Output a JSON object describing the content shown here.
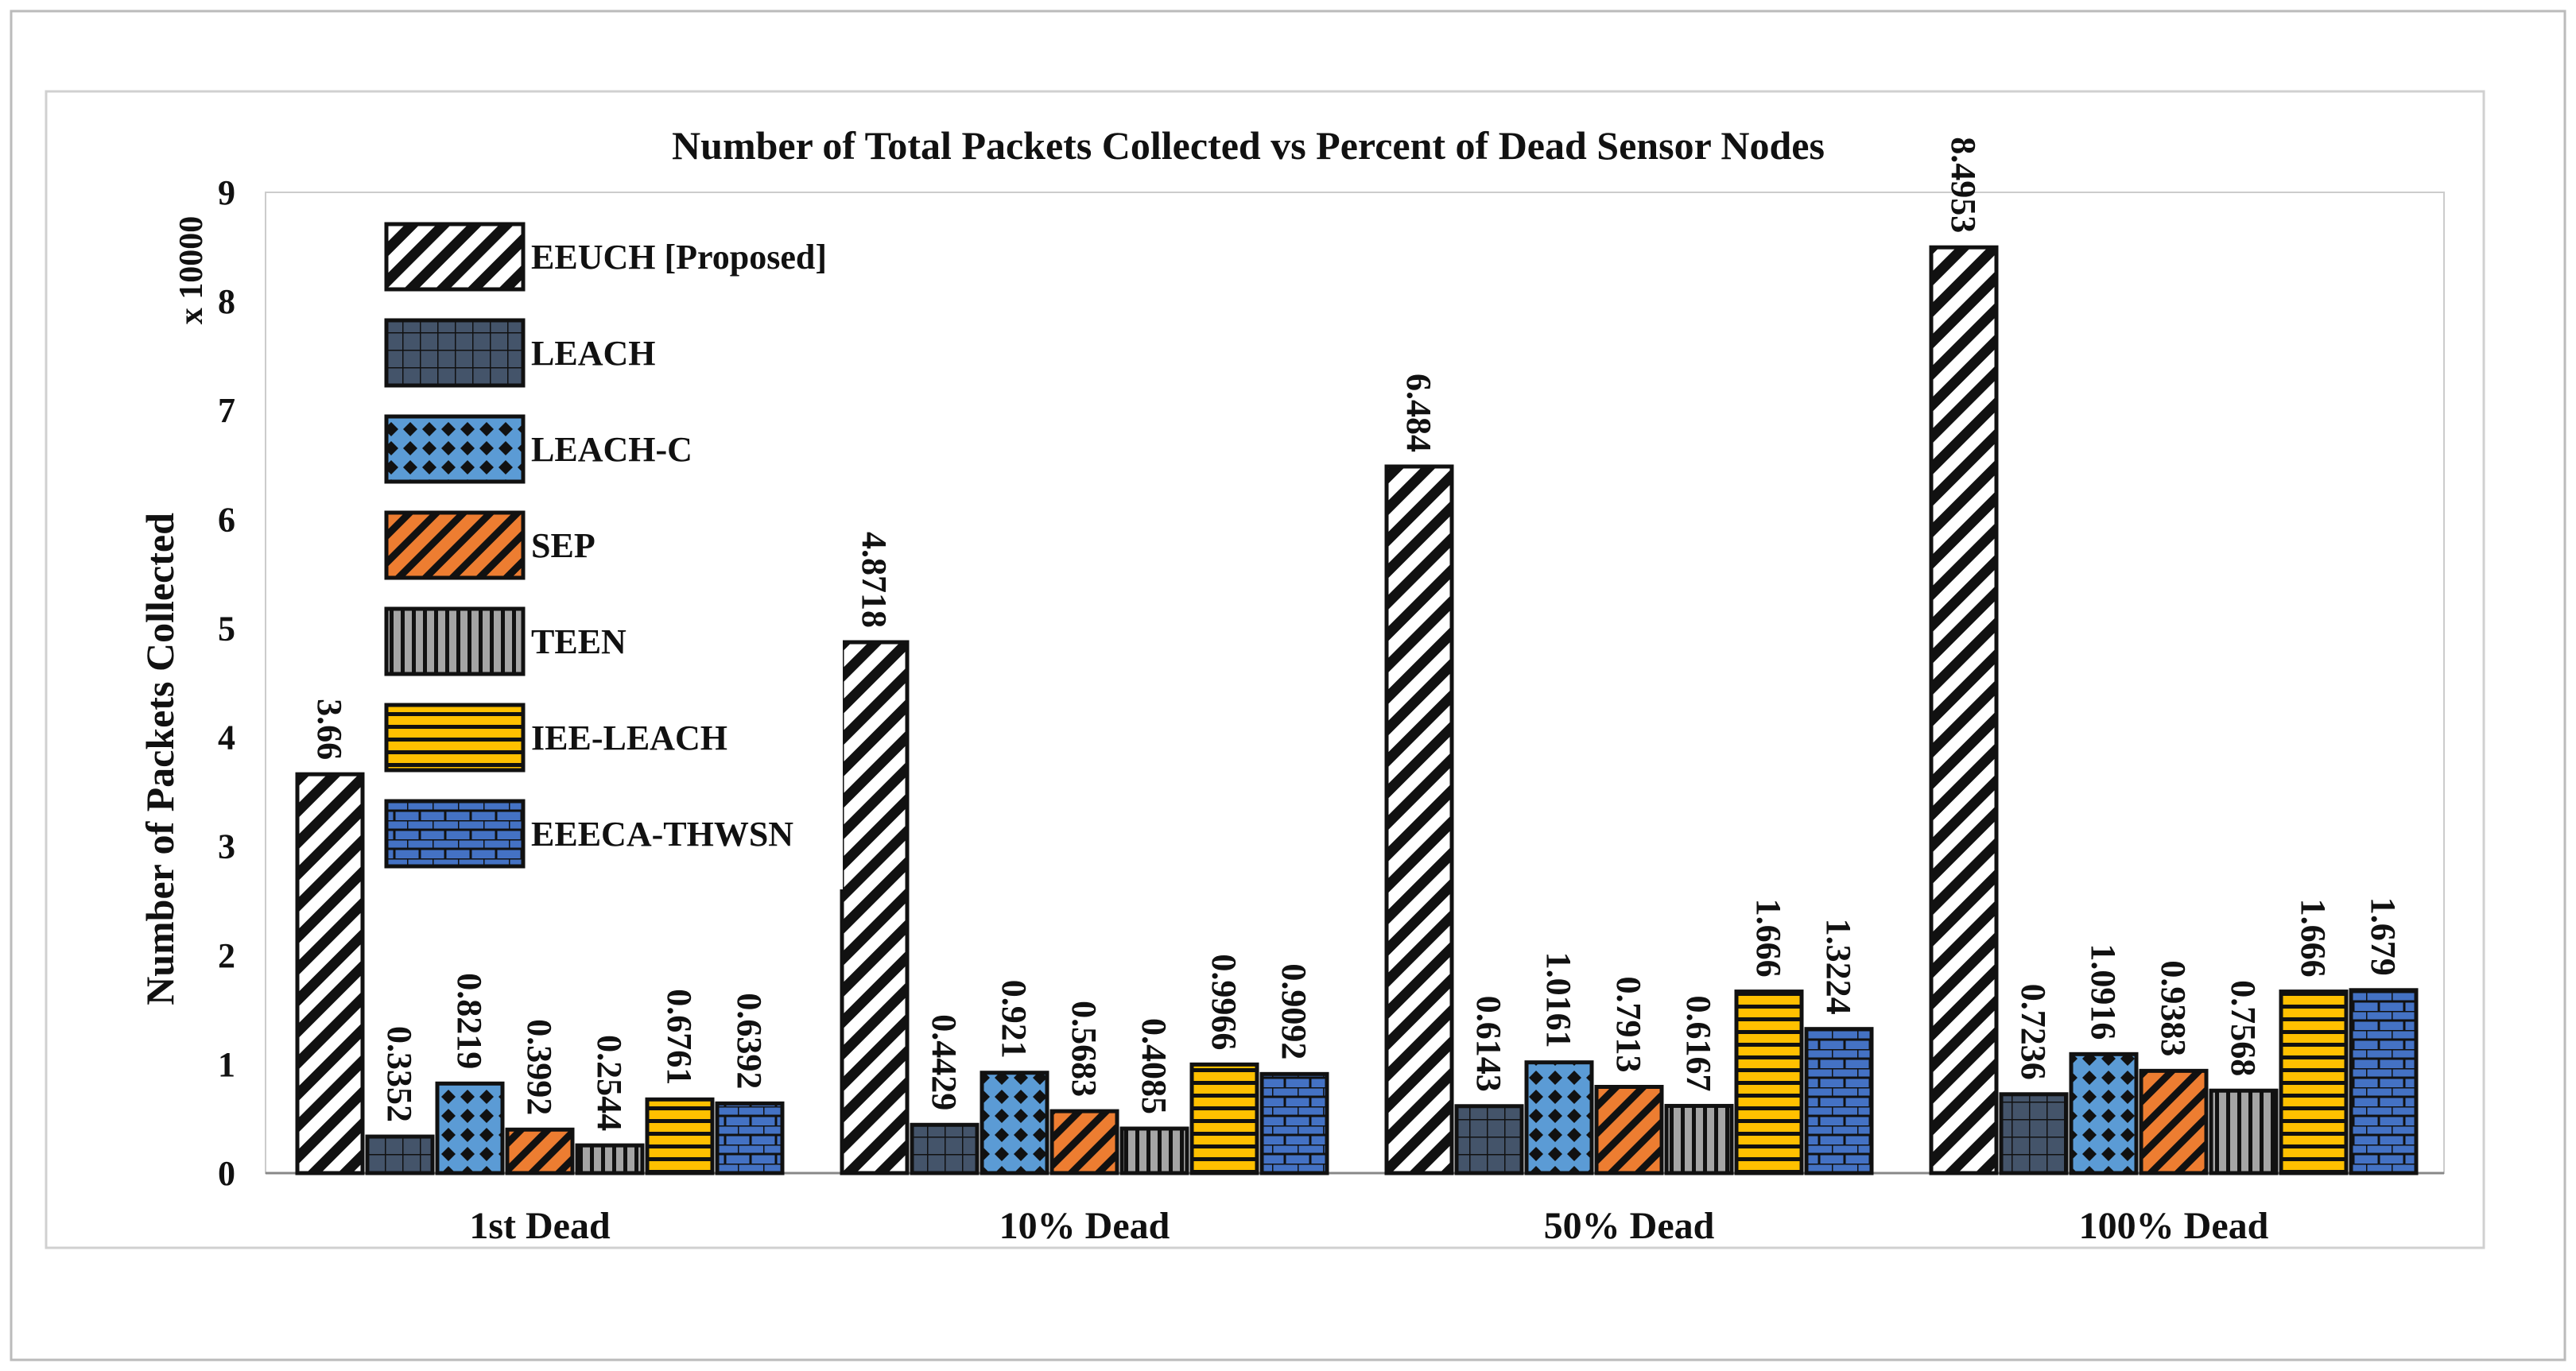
{
  "chart_data": {
    "type": "bar",
    "title": "Number of Total Packets Collected vs Percent of Dead Sensor Nodes",
    "xlabel": "",
    "ylabel": "Number of Packets Collected",
    "y_multiplier": "x 10000",
    "ylim": [
      0,
      9
    ],
    "yticks": [
      "0",
      "1",
      "2",
      "3",
      "4",
      "5",
      "6",
      "7",
      "8",
      "9"
    ],
    "grid": false,
    "legend_position": "top-left",
    "categories": [
      "1st Dead",
      "10% Dead",
      "50% Dead",
      "100% Dead"
    ],
    "series": [
      {
        "name": "EEUCH [Proposed]",
        "values": [
          3.66,
          4.8718,
          6.484,
          8.4953
        ],
        "labels": [
          "3.66",
          "4.8718",
          "6.484",
          "8.4953"
        ],
        "color": "#ffffff",
        "pattern": "diagonal-stripes"
      },
      {
        "name": "LEACH",
        "values": [
          0.3352,
          0.4429,
          0.6143,
          0.7236
        ],
        "labels": [
          "0.3352",
          "0.4429",
          "0.6143",
          "0.7236"
        ],
        "color": "#44546a",
        "pattern": "grid"
      },
      {
        "name": "LEACH-C",
        "values": [
          0.8219,
          0.921,
          1.0161,
          1.0916
        ],
        "labels": [
          "0.8219",
          "0.921",
          "1.0161",
          "1.0916"
        ],
        "color": "#5b9bd5",
        "pattern": "diamonds"
      },
      {
        "name": "SEP",
        "values": [
          0.3992,
          0.5683,
          0.7913,
          0.9383
        ],
        "labels": [
          "0.3992",
          "0.5683",
          "0.7913",
          "0.9383"
        ],
        "color": "#ed7d31",
        "pattern": "diagonal-stripes"
      },
      {
        "name": "TEEN",
        "values": [
          0.2544,
          0.4085,
          0.6167,
          0.7568
        ],
        "labels": [
          "0.2544",
          "0.4085",
          "0.6167",
          "0.7568"
        ],
        "color": "#a5a5a5",
        "pattern": "vertical-stripes"
      },
      {
        "name": "IEE-LEACH",
        "values": [
          0.6761,
          0.9966,
          1.666,
          1.666
        ],
        "labels": [
          "0.6761",
          "0.9966",
          "1.666",
          "1.666"
        ],
        "color": "#ffc000",
        "pattern": "horizontal-stripes"
      },
      {
        "name": "EEECA-THWSN",
        "values": [
          0.6392,
          0.9092,
          1.3224,
          1.679
        ],
        "labels": [
          "0.6392",
          "0.9092",
          "1.3224",
          "1.679"
        ],
        "color": "#4472c4",
        "pattern": "bricks"
      }
    ]
  }
}
